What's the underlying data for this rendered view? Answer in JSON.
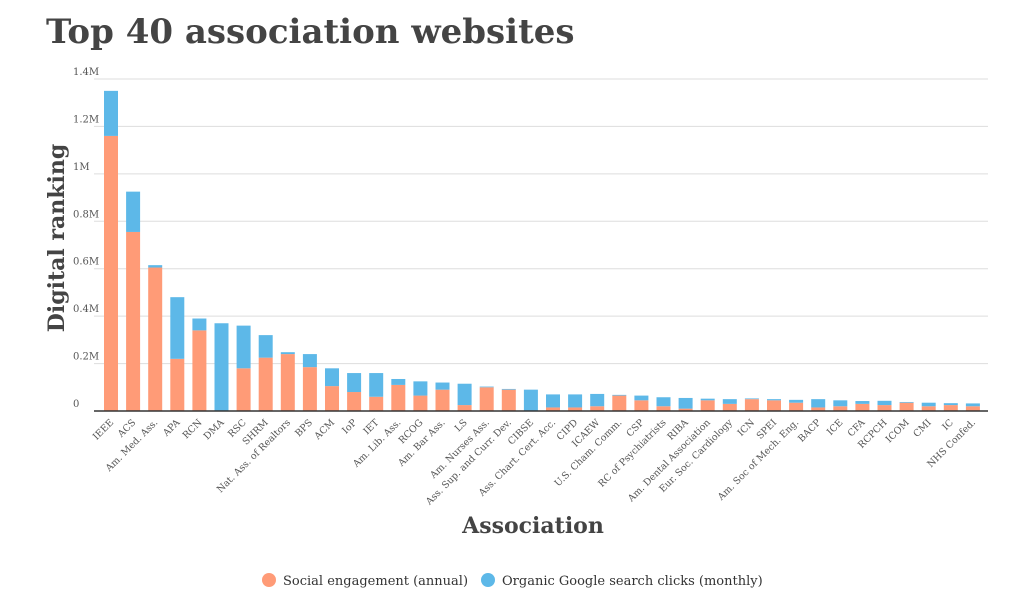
{
  "chart_data": {
    "type": "bar",
    "stacked": true,
    "title": "Top 40 association websites",
    "xlabel": "Association",
    "ylabel": "Digital ranking",
    "ylim": [
      0,
      1400000
    ],
    "yticks": [
      {
        "value": 0,
        "label": "0"
      },
      {
        "value": 200000,
        "label": "0.2M"
      },
      {
        "value": 400000,
        "label": "0.4M"
      },
      {
        "value": 600000,
        "label": "0.6M"
      },
      {
        "value": 800000,
        "label": "0.8M"
      },
      {
        "value": 1000000,
        "label": "1M"
      },
      {
        "value": 1200000,
        "label": "1.2M"
      },
      {
        "value": 1400000,
        "label": "1.4M"
      }
    ],
    "grid": true,
    "legend_position": "bottom",
    "categories": [
      "IEEE",
      "ACS",
      "Am. Med. Ass.",
      "APA",
      "RCN",
      "DMA",
      "RSC",
      "SHRM",
      "Nat. Ass. of Realtors",
      "BPS",
      "ACM",
      "IoP",
      "IET",
      "Am. Lib. Ass.",
      "RCOG",
      "Am. Bar Ass.",
      "LS",
      "Am. Nurses Ass.",
      "Ass. Sup. and Curr. Dev.",
      "CIBSE",
      "Ass. Chart. Cert. Acc.",
      "CIPD",
      "ICAEW",
      "U.S. Cham. Comm.",
      "CSP",
      "RC of Psychiatrists",
      "RIBA",
      "Am. Dental Association",
      "Eur. Soc. Cardiology",
      "ICN",
      "SPEI",
      "Am. Soc of Mech. Eng.",
      "BACP",
      "ICE",
      "CFA",
      "RCPCH",
      "ICOM",
      "CMI",
      "IC",
      "NHS Confed."
    ],
    "series": [
      {
        "name": "Social engagement (annual)",
        "color": "#FF9B77",
        "values": [
          1160000,
          755000,
          605000,
          220000,
          340000,
          0,
          180000,
          225000,
          240000,
          185000,
          105000,
          80000,
          60000,
          110000,
          65000,
          90000,
          25000,
          100000,
          90000,
          0,
          15000,
          15000,
          20000,
          65000,
          45000,
          20000,
          10000,
          45000,
          30000,
          50000,
          45000,
          35000,
          15000,
          20000,
          30000,
          25000,
          35000,
          20000,
          25000,
          20000
        ]
      },
      {
        "name": "Organic Google search clicks (monthly)",
        "color": "#5DB8E8",
        "values": [
          190000,
          170000,
          10000,
          260000,
          50000,
          370000,
          180000,
          95000,
          8000,
          55000,
          75000,
          80000,
          100000,
          25000,
          60000,
          30000,
          90000,
          3000,
          3000,
          90000,
          55000,
          55000,
          52000,
          3000,
          20000,
          38000,
          45000,
          7000,
          20000,
          3000,
          5000,
          12000,
          35000,
          25000,
          12000,
          18000,
          3000,
          15000,
          8000,
          12000
        ]
      }
    ]
  }
}
